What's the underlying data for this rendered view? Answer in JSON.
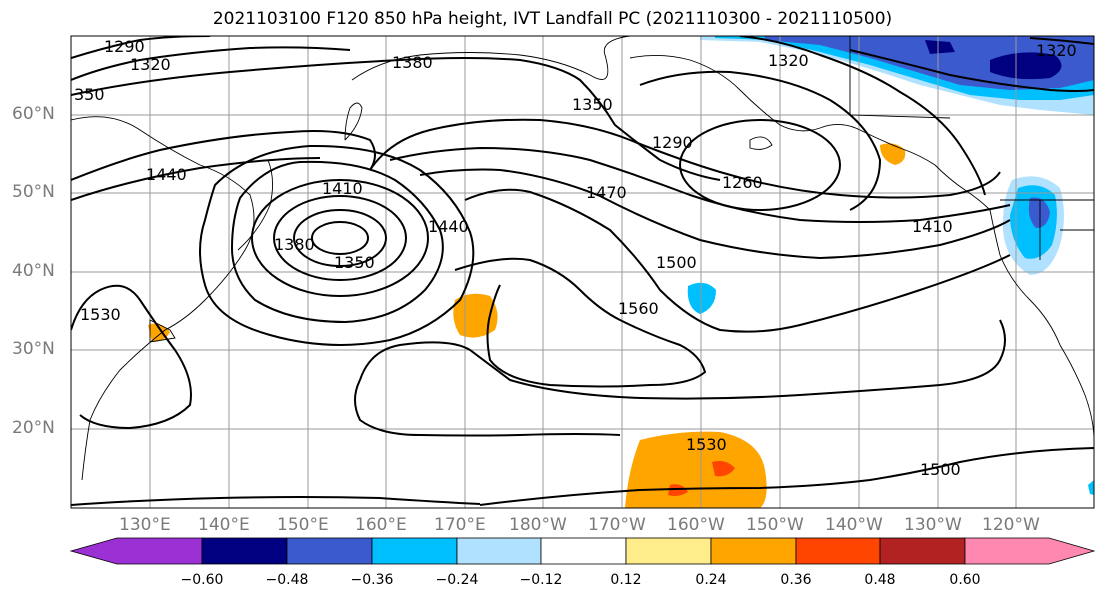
{
  "title": "2021103100 F120 850 hPa height, IVT Landfall PC (2021110300 - 2021110500)",
  "lat_labels": [
    "60°N",
    "50°N",
    "40°N",
    "30°N",
    "20°N"
  ],
  "lon_labels": [
    "130°E",
    "140°E",
    "150°E",
    "160°E",
    "170°E",
    "180°W",
    "170°W",
    "160°W",
    "150°W",
    "140°W",
    "130°W",
    "120°W"
  ],
  "contour_labels": [
    "1290",
    "1320",
    "350",
    "1380",
    "1440",
    "1410",
    "1380",
    "1350",
    "1440",
    "1350",
    "1290",
    "1320",
    "1470",
    "1500",
    "1560",
    "1260",
    "1410",
    "1530",
    "1530",
    "1500",
    "1320"
  ],
  "colorbar": {
    "ticks": [
      "−0.60",
      "−0.48",
      "−0.36",
      "−0.24",
      "−0.12",
      "0.12",
      "0.24",
      "0.36",
      "0.48",
      "0.60"
    ],
    "colors": [
      "#9b30d4",
      "#000080",
      "#3a5acd",
      "#00bfff",
      "#b0e2ff",
      "#ffffff",
      "#ffec8b",
      "#ffa500",
      "#ff4500",
      "#b22222",
      "#ff88b0"
    ]
  }
}
